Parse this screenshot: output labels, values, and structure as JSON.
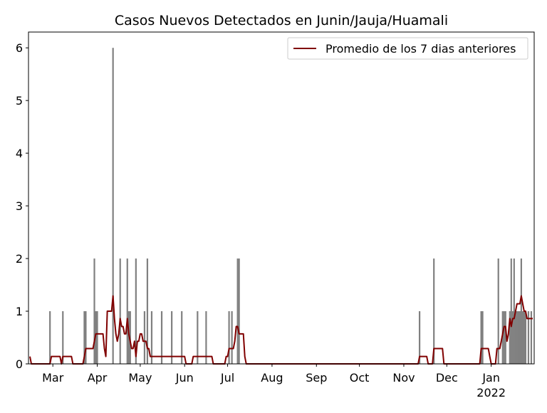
{
  "chart_data": {
    "type": "bar",
    "title": "Casos Nuevos Detectados en Junin/Jauja/Huamali",
    "xlabel": "",
    "ylabel": "",
    "xlim": [
      "2021-02-12",
      "2022-01-31"
    ],
    "ylim": [
      0,
      6.3
    ],
    "yticks": [
      0,
      1,
      2,
      3,
      4,
      5,
      6
    ],
    "xticks": [
      {
        "date": "2021-03-01",
        "label": "Mar"
      },
      {
        "date": "2021-04-01",
        "label": "Apr"
      },
      {
        "date": "2021-05-01",
        "label": "May"
      },
      {
        "date": "2021-06-01",
        "label": "Jun"
      },
      {
        "date": "2021-07-01",
        "label": "Jul"
      },
      {
        "date": "2021-08-01",
        "label": "Aug"
      },
      {
        "date": "2021-09-01",
        "label": "Sep"
      },
      {
        "date": "2021-10-01",
        "label": "Oct"
      },
      {
        "date": "2021-11-01",
        "label": "Nov"
      },
      {
        "date": "2021-12-01",
        "label": "Dec"
      },
      {
        "date": "2022-01-01",
        "label": "Jan",
        "sublabel": "2022"
      }
    ],
    "legend": {
      "placement": "top-right",
      "entries": [
        "Promedio de los 7 dias anteriores"
      ]
    },
    "colors": {
      "bars": "#808080",
      "line": "#800000",
      "axes": "#000000"
    },
    "bars": [
      {
        "date": "2021-02-27",
        "value": 1
      },
      {
        "date": "2021-03-08",
        "value": 1
      },
      {
        "date": "2021-03-23",
        "value": 1
      },
      {
        "date": "2021-03-24",
        "value": 1
      },
      {
        "date": "2021-03-30",
        "value": 2
      },
      {
        "date": "2021-03-31",
        "value": 1
      },
      {
        "date": "2021-04-01",
        "value": 1
      },
      {
        "date": "2021-04-12",
        "value": 6
      },
      {
        "date": "2021-04-17",
        "value": 2
      },
      {
        "date": "2021-04-22",
        "value": 2
      },
      {
        "date": "2021-04-23",
        "value": 1
      },
      {
        "date": "2021-04-24",
        "value": 1
      },
      {
        "date": "2021-04-28",
        "value": 2
      },
      {
        "date": "2021-05-04",
        "value": 1
      },
      {
        "date": "2021-05-06",
        "value": 2
      },
      {
        "date": "2021-05-09",
        "value": 1
      },
      {
        "date": "2021-05-16",
        "value": 1
      },
      {
        "date": "2021-05-23",
        "value": 1
      },
      {
        "date": "2021-05-30",
        "value": 1
      },
      {
        "date": "2021-06-10",
        "value": 1
      },
      {
        "date": "2021-06-16",
        "value": 1
      },
      {
        "date": "2021-07-02",
        "value": 1
      },
      {
        "date": "2021-07-04",
        "value": 1
      },
      {
        "date": "2021-07-08",
        "value": 2
      },
      {
        "date": "2021-07-09",
        "value": 2
      },
      {
        "date": "2021-11-12",
        "value": 1
      },
      {
        "date": "2021-11-22",
        "value": 2
      },
      {
        "date": "2021-12-25",
        "value": 1
      },
      {
        "date": "2021-12-26",
        "value": 1
      },
      {
        "date": "2022-01-06",
        "value": 2
      },
      {
        "date": "2022-01-09",
        "value": 1
      },
      {
        "date": "2022-01-10",
        "value": 1
      },
      {
        "date": "2022-01-11",
        "value": 1
      },
      {
        "date": "2022-01-14",
        "value": 1
      },
      {
        "date": "2022-01-15",
        "value": 2
      },
      {
        "date": "2022-01-16",
        "value": 1
      },
      {
        "date": "2022-01-17",
        "value": 2
      },
      {
        "date": "2022-01-18",
        "value": 1
      },
      {
        "date": "2022-01-19",
        "value": 1
      },
      {
        "date": "2022-01-20",
        "value": 1
      },
      {
        "date": "2022-01-21",
        "value": 1
      },
      {
        "date": "2022-01-22",
        "value": 2
      },
      {
        "date": "2022-01-23",
        "value": 1
      },
      {
        "date": "2022-01-24",
        "value": 1
      },
      {
        "date": "2022-01-25",
        "value": 1
      },
      {
        "date": "2022-01-27",
        "value": 1
      },
      {
        "date": "2022-01-29",
        "value": 1
      }
    ],
    "series": [
      {
        "name": "Promedio de los 7 dias anteriores",
        "points": [
          [
            "2021-02-13",
            0.14
          ],
          [
            "2021-02-14",
            0
          ],
          [
            "2021-02-27",
            0
          ],
          [
            "2021-02-28",
            0.14
          ],
          [
            "2021-03-06",
            0.14
          ],
          [
            "2021-03-07",
            0
          ],
          [
            "2021-03-08",
            0.14
          ],
          [
            "2021-03-14",
            0.14
          ],
          [
            "2021-03-15",
            0
          ],
          [
            "2021-03-22",
            0
          ],
          [
            "2021-03-23",
            0.14
          ],
          [
            "2021-03-24",
            0.29
          ],
          [
            "2021-03-29",
            0.29
          ],
          [
            "2021-03-30",
            0.43
          ],
          [
            "2021-03-31",
            0.57
          ],
          [
            "2021-04-05",
            0.57
          ],
          [
            "2021-04-06",
            0.29
          ],
          [
            "2021-04-07",
            0.14
          ],
          [
            "2021-04-08",
            1.0
          ],
          [
            "2021-04-11",
            1.0
          ],
          [
            "2021-04-12",
            1.29
          ],
          [
            "2021-04-13",
            0.86
          ],
          [
            "2021-04-14",
            0.57
          ],
          [
            "2021-04-15",
            0.43
          ],
          [
            "2021-04-16",
            0.57
          ],
          [
            "2021-04-17",
            0.86
          ],
          [
            "2021-04-18",
            0.71
          ],
          [
            "2021-04-19",
            0.71
          ],
          [
            "2021-04-20",
            0.57
          ],
          [
            "2021-04-21",
            0.57
          ],
          [
            "2021-04-22",
            0.86
          ],
          [
            "2021-04-23",
            0.57
          ],
          [
            "2021-04-24",
            0.43
          ],
          [
            "2021-04-25",
            0.29
          ],
          [
            "2021-04-26",
            0.29
          ],
          [
            "2021-04-27",
            0.43
          ],
          [
            "2021-04-28",
            0.14
          ],
          [
            "2021-04-29",
            0.43
          ],
          [
            "2021-04-30",
            0.43
          ],
          [
            "2021-05-01",
            0.57
          ],
          [
            "2021-05-02",
            0.57
          ],
          [
            "2021-05-03",
            0.43
          ],
          [
            "2021-05-04",
            0.43
          ],
          [
            "2021-05-05",
            0.43
          ],
          [
            "2021-05-06",
            0.29
          ],
          [
            "2021-05-07",
            0.29
          ],
          [
            "2021-05-08",
            0.14
          ],
          [
            "2021-05-10",
            0.14
          ],
          [
            "2021-05-31",
            0.14
          ],
          [
            "2021-06-01",
            0.14
          ],
          [
            "2021-06-02",
            0
          ],
          [
            "2021-06-06",
            0
          ],
          [
            "2021-06-07",
            0.14
          ],
          [
            "2021-06-20",
            0.14
          ],
          [
            "2021-06-21",
            0
          ],
          [
            "2021-06-29",
            0
          ],
          [
            "2021-06-30",
            0.14
          ],
          [
            "2021-07-01",
            0.14
          ],
          [
            "2021-07-02",
            0.29
          ],
          [
            "2021-07-05",
            0.29
          ],
          [
            "2021-07-06",
            0.43
          ],
          [
            "2021-07-07",
            0.71
          ],
          [
            "2021-07-08",
            0.71
          ],
          [
            "2021-07-09",
            0.57
          ],
          [
            "2021-07-12",
            0.57
          ],
          [
            "2021-07-13",
            0.14
          ],
          [
            "2021-07-14",
            0
          ],
          [
            "2021-11-11",
            0
          ],
          [
            "2021-11-12",
            0.14
          ],
          [
            "2021-11-17",
            0.14
          ],
          [
            "2021-11-18",
            0
          ],
          [
            "2021-11-21",
            0
          ],
          [
            "2021-11-22",
            0.29
          ],
          [
            "2021-11-28",
            0.29
          ],
          [
            "2021-11-29",
            0
          ],
          [
            "2021-12-24",
            0
          ],
          [
            "2021-12-25",
            0.29
          ],
          [
            "2021-12-30",
            0.29
          ],
          [
            "2021-12-31",
            0.14
          ],
          [
            "2022-01-01",
            0
          ],
          [
            "2022-01-04",
            0
          ],
          [
            "2022-01-05",
            0.29
          ],
          [
            "2022-01-07",
            0.29
          ],
          [
            "2022-01-08",
            0.43
          ],
          [
            "2022-01-09",
            0.57
          ],
          [
            "2022-01-10",
            0.71
          ],
          [
            "2022-01-11",
            0.71
          ],
          [
            "2022-01-12",
            0.43
          ],
          [
            "2022-01-13",
            0.57
          ],
          [
            "2022-01-14",
            0.86
          ],
          [
            "2022-01-15",
            0.71
          ],
          [
            "2022-01-16",
            0.86
          ],
          [
            "2022-01-17",
            0.86
          ],
          [
            "2022-01-18",
            1.0
          ],
          [
            "2022-01-19",
            1.14
          ],
          [
            "2022-01-20",
            1.14
          ],
          [
            "2022-01-21",
            1.14
          ],
          [
            "2022-01-22",
            1.29
          ],
          [
            "2022-01-23",
            1.14
          ],
          [
            "2022-01-24",
            1.0
          ],
          [
            "2022-01-25",
            1.0
          ],
          [
            "2022-01-26",
            0.86
          ],
          [
            "2022-01-27",
            0.86
          ],
          [
            "2022-01-28",
            0.86
          ],
          [
            "2022-01-29",
            0.86
          ],
          [
            "2022-01-30",
            0.86
          ]
        ]
      }
    ]
  }
}
